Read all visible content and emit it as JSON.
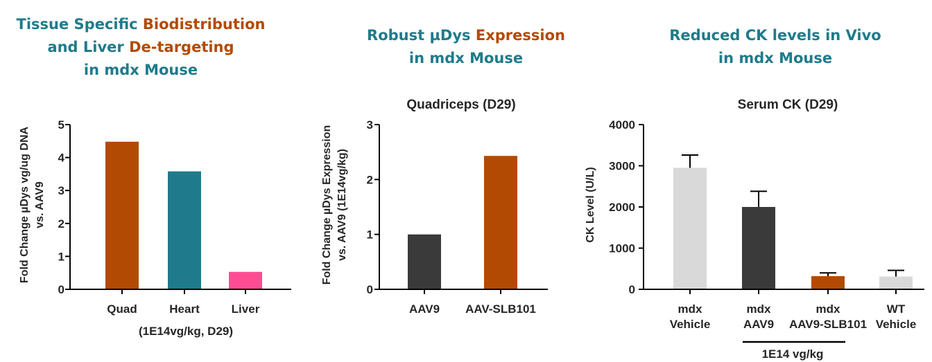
{
  "colors": {
    "teal": "#1f7b8b",
    "orange": "#b34a04",
    "dark": "#3a3a3a",
    "light_gray": "#d9d9d9",
    "pink": "#ff4d94"
  },
  "panels": [
    {
      "heading_lines": [
        [
          {
            "text": "Tissue Specific ",
            "color": "teal"
          },
          {
            "text": "Biodistribution",
            "color": "orange"
          }
        ],
        [
          {
            "text": "and Liver ",
            "color": "teal"
          },
          {
            "text": "De-targeting",
            "color": "orange"
          }
        ],
        [
          {
            "text": "in mdx Mouse",
            "color": "teal"
          }
        ]
      ]
    },
    {
      "heading_lines": [
        [
          {
            "text": "Robust µDys ",
            "color": "teal"
          },
          {
            "text": "Expression",
            "color": "orange"
          }
        ],
        [
          {
            "text": "in mdx Mouse",
            "color": "teal"
          }
        ]
      ]
    },
    {
      "heading_lines": [
        [
          {
            "text": "Reduced CK levels in Vivo",
            "color": "teal"
          }
        ],
        [
          {
            "text": "in mdx  Mouse",
            "color": "teal"
          }
        ]
      ]
    }
  ],
  "chart_data": [
    {
      "type": "bar",
      "title": "",
      "ylabel_lines": [
        "Fold Change µDys vg/ug DNA",
        "vs. AAV9"
      ],
      "xlabel": "(1E14vg/kg, D29)",
      "categories": [
        "Quad",
        "Heart",
        "Liver"
      ],
      "values": [
        4.48,
        3.58,
        0.53
      ],
      "bar_colors": [
        "orange",
        "teal",
        "pink"
      ],
      "ylim": [
        0,
        5
      ],
      "yticks": [
        "0",
        "1",
        "2",
        "3",
        "4",
        "5"
      ],
      "grid": false
    },
    {
      "type": "bar",
      "title": "Quadriceps (D29)",
      "ylabel_lines": [
        "Fold Change µDys Expression",
        "vs. AAV9 (1E14vg/kg)"
      ],
      "xlabel": "",
      "categories": [
        "AAV9",
        "AAV-SLB101"
      ],
      "values": [
        1.0,
        2.43
      ],
      "bar_colors": [
        "dark",
        "orange"
      ],
      "ylim": [
        0,
        3
      ],
      "yticks": [
        "0",
        "1",
        "2",
        "3"
      ],
      "grid": false
    },
    {
      "type": "bar",
      "title": "Serum CK (D29)",
      "ylabel_lines": [
        "CK Level (U/L)"
      ],
      "xlabel": "1E14 vg/kg",
      "categories": [
        [
          "mdx",
          "Vehicle"
        ],
        [
          "mdx",
          "AAV9"
        ],
        [
          "mdx",
          "AAV9-SLB101"
        ],
        [
          "WT",
          "Vehicle"
        ]
      ],
      "values": [
        2950,
        2000,
        320,
        310
      ],
      "error": [
        310,
        380,
        80,
        150
      ],
      "bar_colors": [
        "light_gray",
        "dark",
        "orange",
        "light_gray"
      ],
      "ylim": [
        0,
        4000
      ],
      "yticks": [
        "0",
        "1000",
        "2000",
        "3000",
        "4000"
      ],
      "grid": false
    }
  ]
}
